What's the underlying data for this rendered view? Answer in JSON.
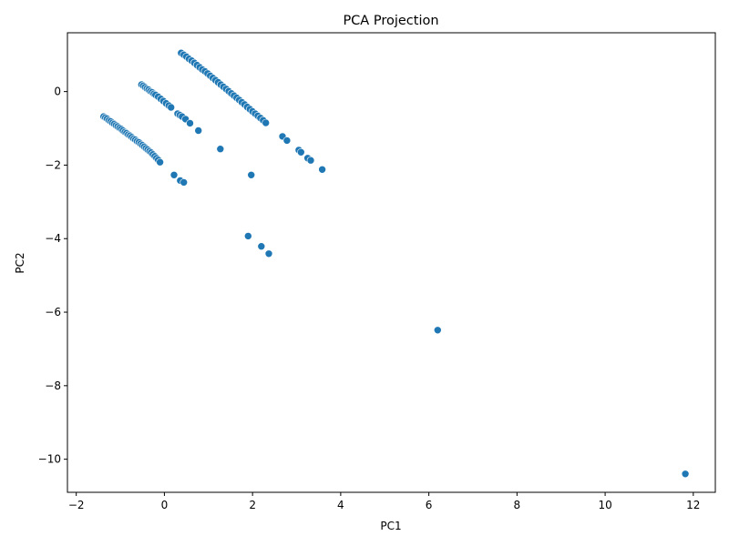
{
  "chart_data": {
    "type": "scatter",
    "title": "PCA Projection",
    "xlabel": "PC1",
    "ylabel": "PC2",
    "xlim": [
      -2.2,
      12.5
    ],
    "ylim": [
      -10.9,
      1.6
    ],
    "xticks": [
      -2,
      0,
      2,
      4,
      6,
      8,
      10,
      12
    ],
    "yticks": [
      0,
      -2,
      -4,
      -6,
      -8,
      -10
    ],
    "grid": false,
    "colors": {
      "point": "#1f77b4"
    },
    "series": [
      {
        "points": [
          [
            -1.38,
            -0.68
          ],
          [
            -1.34,
            -0.71
          ],
          [
            -1.3,
            -0.74
          ],
          [
            -1.26,
            -0.78
          ],
          [
            -1.22,
            -0.81
          ],
          [
            -1.18,
            -0.85
          ],
          [
            -1.14,
            -0.88
          ],
          [
            -1.1,
            -0.92
          ],
          [
            -1.06,
            -0.95
          ],
          [
            -1.02,
            -0.99
          ],
          [
            -0.98,
            -1.02
          ],
          [
            -0.94,
            -1.06
          ],
          [
            -0.9,
            -1.1
          ],
          [
            -0.86,
            -1.13
          ],
          [
            -0.82,
            -1.17
          ],
          [
            -0.78,
            -1.2
          ],
          [
            -0.74,
            -1.24
          ],
          [
            -0.7,
            -1.28
          ],
          [
            -0.66,
            -1.31
          ],
          [
            -0.62,
            -1.35
          ],
          [
            -0.58,
            -1.38
          ],
          [
            -0.54,
            -1.42
          ],
          [
            -0.5,
            -1.46
          ],
          [
            -0.46,
            -1.5
          ],
          [
            -0.42,
            -1.54
          ],
          [
            -0.38,
            -1.58
          ],
          [
            -0.34,
            -1.62
          ],
          [
            -0.3,
            -1.66
          ],
          [
            -0.26,
            -1.71
          ],
          [
            -0.22,
            -1.76
          ],
          [
            -0.18,
            -1.81
          ],
          [
            -0.14,
            -1.86
          ],
          [
            -0.1,
            -1.92
          ],
          [
            0.22,
            -2.27
          ],
          [
            0.36,
            -2.42
          ],
          [
            0.44,
            -2.47
          ],
          [
            -0.52,
            0.19
          ],
          [
            -0.48,
            0.16
          ],
          [
            -0.44,
            0.12
          ],
          [
            -0.4,
            0.08
          ],
          [
            -0.36,
            0.05
          ],
          [
            -0.32,
            0.01
          ],
          [
            -0.28,
            -0.02
          ],
          [
            -0.24,
            -0.06
          ],
          [
            -0.2,
            -0.09
          ],
          [
            -0.14,
            -0.14
          ],
          [
            -0.08,
            -0.2
          ],
          [
            -0.02,
            -0.26
          ],
          [
            0.04,
            -0.32
          ],
          [
            0.1,
            -0.38
          ],
          [
            0.15,
            -0.43
          ],
          [
            0.3,
            -0.6
          ],
          [
            0.35,
            -0.64
          ],
          [
            0.4,
            -0.68
          ],
          [
            0.48,
            -0.75
          ],
          [
            0.58,
            -0.86
          ],
          [
            0.77,
            -1.06
          ],
          [
            1.27,
            -1.56
          ],
          [
            0.38,
            1.05
          ],
          [
            0.44,
            1.0
          ],
          [
            0.5,
            0.95
          ],
          [
            0.56,
            0.89
          ],
          [
            0.62,
            0.84
          ],
          [
            0.68,
            0.78
          ],
          [
            0.74,
            0.72
          ],
          [
            0.8,
            0.66
          ],
          [
            0.86,
            0.6
          ],
          [
            0.92,
            0.55
          ],
          [
            0.98,
            0.49
          ],
          [
            1.04,
            0.43
          ],
          [
            1.1,
            0.37
          ],
          [
            1.16,
            0.31
          ],
          [
            1.22,
            0.25
          ],
          [
            1.28,
            0.19
          ],
          [
            1.34,
            0.13
          ],
          [
            1.4,
            0.07
          ],
          [
            1.46,
            0.01
          ],
          [
            1.52,
            -0.05
          ],
          [
            1.58,
            -0.11
          ],
          [
            1.64,
            -0.17
          ],
          [
            1.7,
            -0.23
          ],
          [
            1.76,
            -0.29
          ],
          [
            1.82,
            -0.35
          ],
          [
            1.88,
            -0.42
          ],
          [
            1.94,
            -0.48
          ],
          [
            2.0,
            -0.54
          ],
          [
            2.06,
            -0.6
          ],
          [
            2.12,
            -0.66
          ],
          [
            2.18,
            -0.72
          ],
          [
            2.24,
            -0.78
          ],
          [
            2.3,
            -0.85
          ],
          [
            2.68,
            -1.22
          ],
          [
            2.78,
            -1.33
          ],
          [
            3.05,
            -1.59
          ],
          [
            3.1,
            -1.65
          ],
          [
            3.25,
            -1.81
          ],
          [
            3.32,
            -1.87
          ],
          [
            3.58,
            -2.12
          ],
          [
            1.97,
            -2.27
          ],
          [
            1.9,
            -3.93
          ],
          [
            2.2,
            -4.21
          ],
          [
            2.37,
            -4.41
          ],
          [
            6.2,
            -6.49
          ],
          [
            11.82,
            -10.4
          ]
        ]
      }
    ]
  }
}
